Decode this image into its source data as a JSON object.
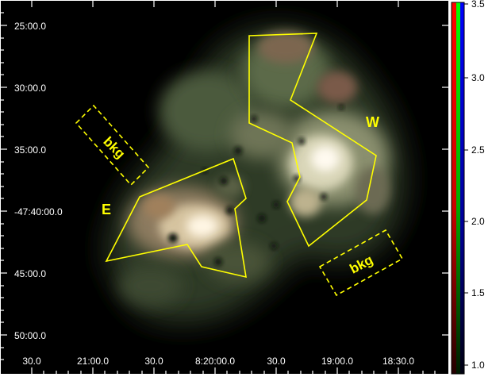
{
  "image": {
    "description_free": true,
    "background_color": "#000000",
    "region_color": "#ffff00"
  },
  "y_axis_labels": [
    "25:00.0",
    "30:00.0",
    "35:00.0",
    "-47:40:00.0",
    "45:00.0",
    "50:00.0"
  ],
  "x_axis_labels": [
    "30.0",
    "21:00.0",
    "30.0",
    "8:20:00.0",
    "30.0",
    "19:00.0",
    "18:30.0"
  ],
  "regions": {
    "east_label": "E",
    "west_label": "W",
    "bkg_left_label": "bkg",
    "bkg_right_label": "bkg"
  },
  "colorbar": {
    "labels": [
      "3.5",
      "3.0",
      "2.5",
      "2.0",
      "1.5",
      "1.0"
    ],
    "colors": [
      "#ff0000",
      "#00ff00",
      "#0000ff"
    ]
  }
}
